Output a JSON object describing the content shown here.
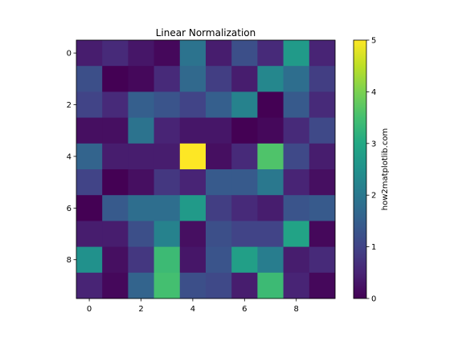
{
  "chart_data": {
    "type": "heatmap",
    "title": "Linear Normalization",
    "colormap": "viridis",
    "x_ticks": [
      0,
      2,
      4,
      6,
      8
    ],
    "y_ticks": [
      0,
      2,
      4,
      6,
      8
    ],
    "values": [
      [
        0.4,
        0.6,
        0.3,
        0.1,
        1.9,
        0.4,
        1.2,
        0.6,
        2.7,
        0.5
      ],
      [
        1.2,
        0.0,
        0.1,
        0.6,
        1.7,
        0.9,
        0.4,
        2.3,
        1.8,
        0.9
      ],
      [
        1.0,
        0.6,
        1.5,
        1.3,
        1.0,
        1.5,
        2.2,
        0.0,
        1.4,
        0.6
      ],
      [
        0.2,
        0.2,
        1.9,
        0.5,
        0.3,
        0.3,
        0.0,
        0.1,
        0.6,
        1.1
      ],
      [
        1.6,
        0.4,
        0.4,
        0.4,
        5.0,
        0.2,
        0.6,
        3.6,
        1.1,
        0.4
      ],
      [
        1.0,
        0.0,
        0.2,
        0.8,
        0.5,
        1.4,
        1.4,
        2.0,
        0.5,
        0.2
      ],
      [
        0.0,
        1.4,
        1.8,
        1.8,
        2.7,
        0.9,
        0.6,
        0.4,
        1.3,
        1.4
      ],
      [
        0.4,
        0.4,
        1.2,
        2.2,
        0.2,
        1.2,
        1.0,
        1.0,
        2.9,
        0.1
      ],
      [
        2.5,
        0.2,
        0.8,
        3.4,
        0.3,
        1.3,
        2.8,
        2.1,
        0.4,
        0.6
      ],
      [
        0.5,
        0.1,
        1.6,
        3.5,
        1.2,
        1.1,
        0.4,
        3.4,
        0.5,
        0.1
      ]
    ],
    "vmin": 0,
    "vmax": 5,
    "colorbar": {
      "label": "how2matplotlib.com",
      "ticks": [
        0,
        1,
        2,
        3,
        4,
        5
      ]
    }
  }
}
